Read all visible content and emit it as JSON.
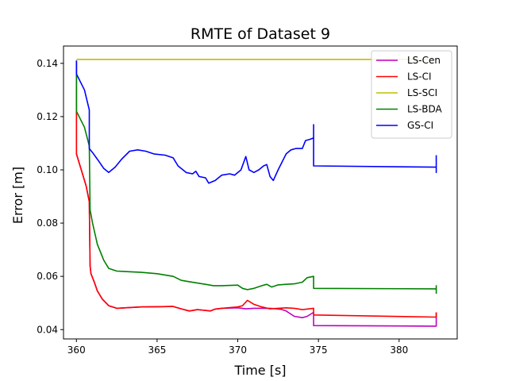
{
  "chart_data": {
    "type": "line",
    "title": "RMTE of Dataset 9",
    "xlabel": "Time [s]",
    "ylabel": "Error [m]",
    "xlim": [
      359.2,
      383.6
    ],
    "ylim": [
      0.0365,
      0.1465
    ],
    "xticks": [
      360,
      365,
      370,
      375,
      380
    ],
    "yticks": [
      0.04,
      0.06,
      0.08,
      0.1,
      0.12,
      0.14
    ],
    "ytick_labels": [
      "0.04",
      "0.06",
      "0.08",
      "0.10",
      "0.12",
      "0.14"
    ],
    "grid": false,
    "legend_position": "top-right",
    "series": [
      {
        "name": "LS-Cen",
        "color": "#bf00bf",
        "points": [
          [
            360.0,
            0.141
          ],
          [
            360.0,
            0.106
          ],
          [
            360.3,
            0.1
          ],
          [
            360.6,
            0.094
          ],
          [
            360.8,
            0.088
          ],
          [
            360.85,
            0.064
          ],
          [
            360.9,
            0.061
          ],
          [
            361.1,
            0.058
          ],
          [
            361.3,
            0.0545
          ],
          [
            361.6,
            0.0515
          ],
          [
            362.0,
            0.049
          ],
          [
            362.5,
            0.048
          ],
          [
            363.0,
            0.0482
          ],
          [
            364.0,
            0.0485
          ],
          [
            365.0,
            0.0486
          ],
          [
            366.0,
            0.0487
          ],
          [
            366.5,
            0.0478
          ],
          [
            367.0,
            0.047
          ],
          [
            367.5,
            0.0475
          ],
          [
            368.0,
            0.0472
          ],
          [
            368.3,
            0.047
          ],
          [
            368.6,
            0.0477
          ],
          [
            369.0,
            0.048
          ],
          [
            370.0,
            0.0482
          ],
          [
            370.5,
            0.0478
          ],
          [
            371.0,
            0.048
          ],
          [
            372.0,
            0.048
          ],
          [
            372.4,
            0.0478
          ],
          [
            372.7,
            0.0476
          ],
          [
            373.0,
            0.047
          ],
          [
            373.5,
            0.045
          ],
          [
            374.0,
            0.0445
          ],
          [
            374.3,
            0.045
          ],
          [
            374.7,
            0.0465
          ],
          [
            374.7,
            0.0415
          ],
          [
            382.3,
            0.0413
          ],
          [
            382.3,
            0.0465
          ]
        ]
      },
      {
        "name": "LS-CI",
        "color": "#ff0000",
        "points": [
          [
            360.0,
            0.141
          ],
          [
            360.0,
            0.106
          ],
          [
            360.3,
            0.1
          ],
          [
            360.6,
            0.094
          ],
          [
            360.8,
            0.088
          ],
          [
            360.85,
            0.064
          ],
          [
            360.9,
            0.061
          ],
          [
            361.1,
            0.058
          ],
          [
            361.3,
            0.0545
          ],
          [
            361.6,
            0.0515
          ],
          [
            362.0,
            0.049
          ],
          [
            362.5,
            0.048
          ],
          [
            363.0,
            0.0482
          ],
          [
            364.0,
            0.0485
          ],
          [
            365.0,
            0.0486
          ],
          [
            366.0,
            0.0487
          ],
          [
            366.5,
            0.0478
          ],
          [
            367.0,
            0.047
          ],
          [
            367.5,
            0.0475
          ],
          [
            368.0,
            0.0472
          ],
          [
            368.3,
            0.047
          ],
          [
            368.6,
            0.0477
          ],
          [
            369.0,
            0.048
          ],
          [
            370.0,
            0.0485
          ],
          [
            370.3,
            0.049
          ],
          [
            370.6,
            0.051
          ],
          [
            371.0,
            0.0495
          ],
          [
            371.5,
            0.0485
          ],
          [
            372.0,
            0.0478
          ],
          [
            372.5,
            0.048
          ],
          [
            373.0,
            0.0482
          ],
          [
            373.5,
            0.048
          ],
          [
            374.0,
            0.0475
          ],
          [
            374.7,
            0.048
          ],
          [
            374.7,
            0.0455
          ],
          [
            382.3,
            0.0447
          ],
          [
            382.3,
            0.0465
          ]
        ]
      },
      {
        "name": "LS-SCI",
        "color": "#bfbf00",
        "points": [
          [
            360.0,
            0.1415
          ],
          [
            382.3,
            0.1415
          ]
        ]
      },
      {
        "name": "LS-BDA",
        "color": "#008000",
        "points": [
          [
            360.0,
            0.141
          ],
          [
            360.0,
            0.122
          ],
          [
            360.5,
            0.116
          ],
          [
            360.8,
            0.109
          ],
          [
            360.85,
            0.085
          ],
          [
            361.0,
            0.08
          ],
          [
            361.3,
            0.072
          ],
          [
            361.7,
            0.066
          ],
          [
            362.0,
            0.063
          ],
          [
            362.5,
            0.062
          ],
          [
            363.0,
            0.0618
          ],
          [
            364.0,
            0.0615
          ],
          [
            365.0,
            0.061
          ],
          [
            366.0,
            0.06
          ],
          [
            366.5,
            0.0585
          ],
          [
            367.0,
            0.058
          ],
          [
            367.5,
            0.0575
          ],
          [
            368.0,
            0.057
          ],
          [
            368.5,
            0.0565
          ],
          [
            369.0,
            0.0565
          ],
          [
            370.0,
            0.0567
          ],
          [
            370.3,
            0.0555
          ],
          [
            370.6,
            0.055
          ],
          [
            371.0,
            0.0555
          ],
          [
            371.5,
            0.0565
          ],
          [
            371.8,
            0.057
          ],
          [
            372.1,
            0.056
          ],
          [
            372.5,
            0.0568
          ],
          [
            373.0,
            0.057
          ],
          [
            373.5,
            0.0572
          ],
          [
            374.0,
            0.0578
          ],
          [
            374.3,
            0.0595
          ],
          [
            374.7,
            0.06
          ],
          [
            374.7,
            0.0555
          ],
          [
            382.3,
            0.0553
          ],
          [
            382.3,
            0.0565
          ],
          [
            382.3,
            0.0535
          ]
        ]
      },
      {
        "name": "GS-CI",
        "color": "#0000ff",
        "points": [
          [
            360.0,
            0.141
          ],
          [
            360.0,
            0.136
          ],
          [
            360.5,
            0.13
          ],
          [
            360.8,
            0.1225
          ],
          [
            360.8,
            0.108
          ],
          [
            361.0,
            0.1065
          ],
          [
            361.3,
            0.104
          ],
          [
            361.7,
            0.1005
          ],
          [
            362.0,
            0.099
          ],
          [
            362.4,
            0.101
          ],
          [
            362.8,
            0.104
          ],
          [
            363.3,
            0.107
          ],
          [
            363.8,
            0.1075
          ],
          [
            364.3,
            0.107
          ],
          [
            364.8,
            0.106
          ],
          [
            365.5,
            0.1055
          ],
          [
            366.0,
            0.1045
          ],
          [
            366.3,
            0.1015
          ],
          [
            366.8,
            0.099
          ],
          [
            367.2,
            0.0985
          ],
          [
            367.4,
            0.0995
          ],
          [
            367.6,
            0.0975
          ],
          [
            368.0,
            0.097
          ],
          [
            368.2,
            0.095
          ],
          [
            368.6,
            0.096
          ],
          [
            369.0,
            0.098
          ],
          [
            369.5,
            0.0985
          ],
          [
            369.8,
            0.098
          ],
          [
            370.2,
            0.1
          ],
          [
            370.5,
            0.105
          ],
          [
            370.7,
            0.1
          ],
          [
            371.0,
            0.099
          ],
          [
            371.3,
            0.1
          ],
          [
            371.6,
            0.1015
          ],
          [
            371.8,
            0.102
          ],
          [
            372.0,
            0.0975
          ],
          [
            372.2,
            0.096
          ],
          [
            372.5,
            0.1
          ],
          [
            373.0,
            0.106
          ],
          [
            373.3,
            0.1075
          ],
          [
            373.6,
            0.108
          ],
          [
            374.0,
            0.108
          ],
          [
            374.2,
            0.111
          ],
          [
            374.5,
            0.1115
          ],
          [
            374.7,
            0.112
          ],
          [
            374.7,
            0.117
          ],
          [
            374.7,
            0.1015
          ],
          [
            382.3,
            0.101
          ],
          [
            382.3,
            0.099
          ],
          [
            382.3,
            0.1055
          ]
        ]
      }
    ]
  }
}
